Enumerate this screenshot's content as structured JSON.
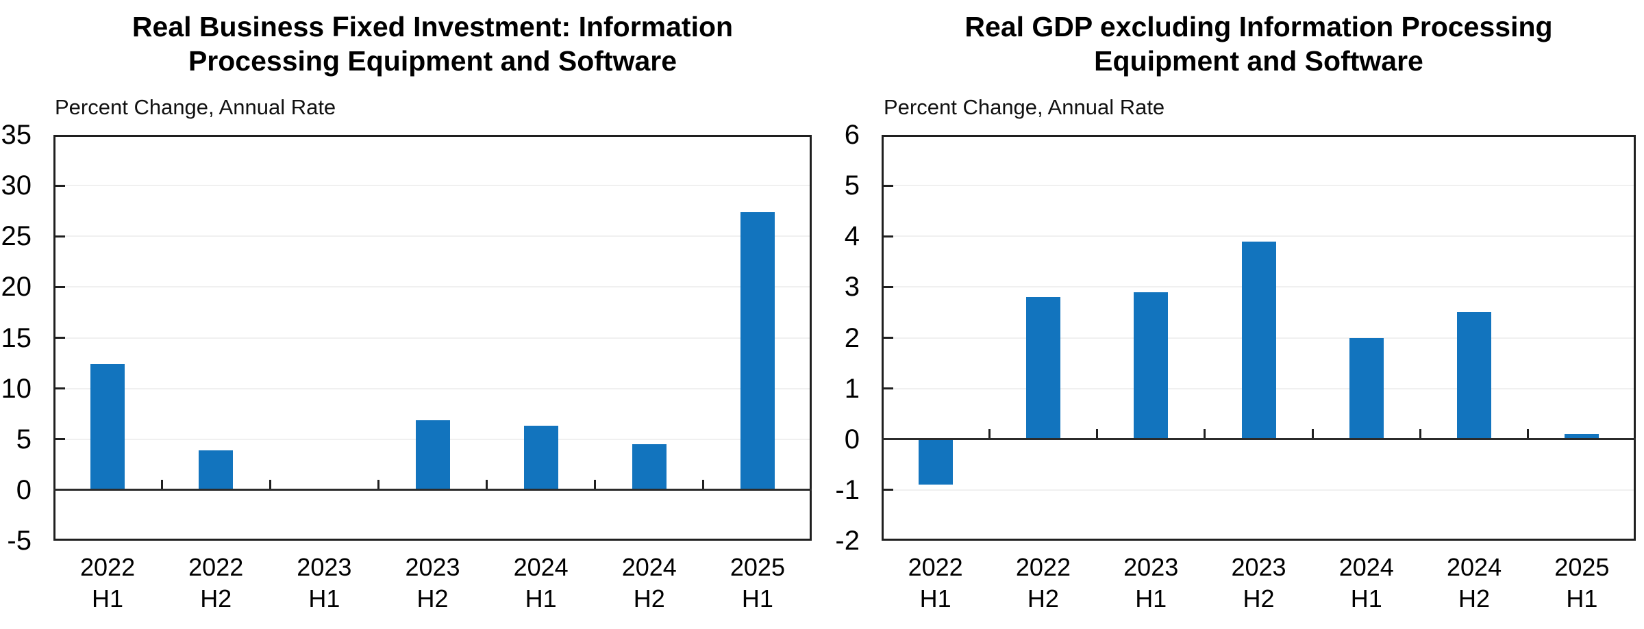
{
  "page": {
    "background": "#ffffff",
    "description": "Two-panel bar chart figure comparing investment in information processing equipment and software with GDP excluding it"
  },
  "colors": {
    "bar": "#1274BE",
    "axis_frame": "#1f1f1f",
    "zero_line": "#2b2b2b",
    "gridline": "#f0f0f0",
    "text": "#000000"
  },
  "chart_data": [
    {
      "type": "bar",
      "title": "Real Business Fixed Investment: Information\nProcessing Equipment and Software",
      "subtitle": "Percent Change, Annual Rate",
      "categories": [
        "2022 H1",
        "2022 H2",
        "2023 H1",
        "2023 H2",
        "2024 H1",
        "2024 H2",
        "2025 H1"
      ],
      "values": [
        12.4,
        3.9,
        0.0,
        6.9,
        6.3,
        4.5,
        27.4
      ],
      "ylim": [
        -5,
        35
      ],
      "yticks": [
        35,
        30,
        25,
        20,
        15,
        10,
        5,
        0,
        -5
      ],
      "xlabel": "",
      "ylabel": "",
      "grid": true,
      "legend": "none",
      "bar_color": "#1274BE"
    },
    {
      "type": "bar",
      "title": "Real GDP excluding Information Processing\nEquipment and Software",
      "subtitle": "Percent Change, Annual Rate",
      "categories": [
        "2022 H1",
        "2022 H2",
        "2023 H1",
        "2023 H2",
        "2024 H1",
        "2024 H2",
        "2025 H1"
      ],
      "values": [
        -0.9,
        2.8,
        2.9,
        3.9,
        2.0,
        2.5,
        0.1
      ],
      "ylim": [
        -2,
        6
      ],
      "yticks": [
        6,
        5,
        4,
        3,
        2,
        1,
        0,
        -1,
        -2
      ],
      "xlabel": "",
      "ylabel": "",
      "grid": true,
      "legend": "none",
      "bar_color": "#1274BE"
    }
  ]
}
